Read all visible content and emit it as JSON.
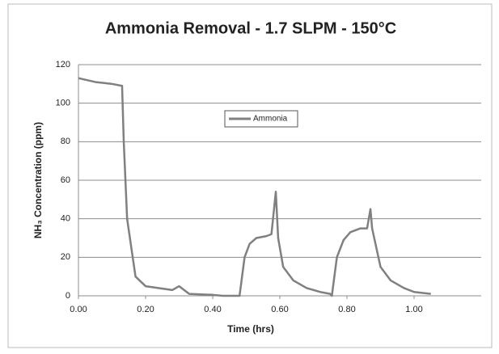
{
  "chart_data": {
    "type": "line",
    "title": "Ammonia Removal - 1.7 SLPM - 150°C",
    "x_label": "Time (hrs)",
    "y_label": "NH₃ Concentration (ppm)",
    "x": [
      0.0,
      0.05,
      0.1,
      0.13,
      0.135,
      0.145,
      0.17,
      0.2,
      0.28,
      0.3,
      0.33,
      0.4,
      0.43,
      0.48,
      0.495,
      0.51,
      0.53,
      0.56,
      0.575,
      0.588,
      0.595,
      0.61,
      0.64,
      0.68,
      0.72,
      0.75,
      0.755,
      0.77,
      0.79,
      0.81,
      0.84,
      0.86,
      0.87,
      0.875,
      0.9,
      0.93,
      0.97,
      1.0,
      1.05
    ],
    "series": [
      {
        "name": "Ammonia",
        "color": "#808080",
        "values": [
          113,
          111,
          110,
          109,
          80,
          40,
          10,
          5,
          3,
          5,
          1,
          0.5,
          0,
          0,
          20,
          27,
          30,
          31,
          32,
          54,
          30,
          15,
          8,
          4,
          2,
          1,
          0,
          20,
          29,
          33,
          35,
          35,
          45,
          35,
          15,
          8,
          4,
          2,
          1
        ]
      }
    ],
    "xlim": [
      0,
      1.2
    ],
    "xticks": [
      {
        "value": 0,
        "label": "0.00"
      },
      {
        "value": 0.2,
        "label": "0.20"
      },
      {
        "value": 0.4,
        "label": "0.40"
      },
      {
        "value": 0.6,
        "label": "0.60"
      },
      {
        "value": 0.8,
        "label": "0.80"
      },
      {
        "value": 1.0,
        "label": "1.00"
      }
    ],
    "ylim": [
      0,
      120
    ],
    "yticks": [
      0,
      20,
      40,
      60,
      80,
      100,
      120
    ],
    "grid": true
  }
}
